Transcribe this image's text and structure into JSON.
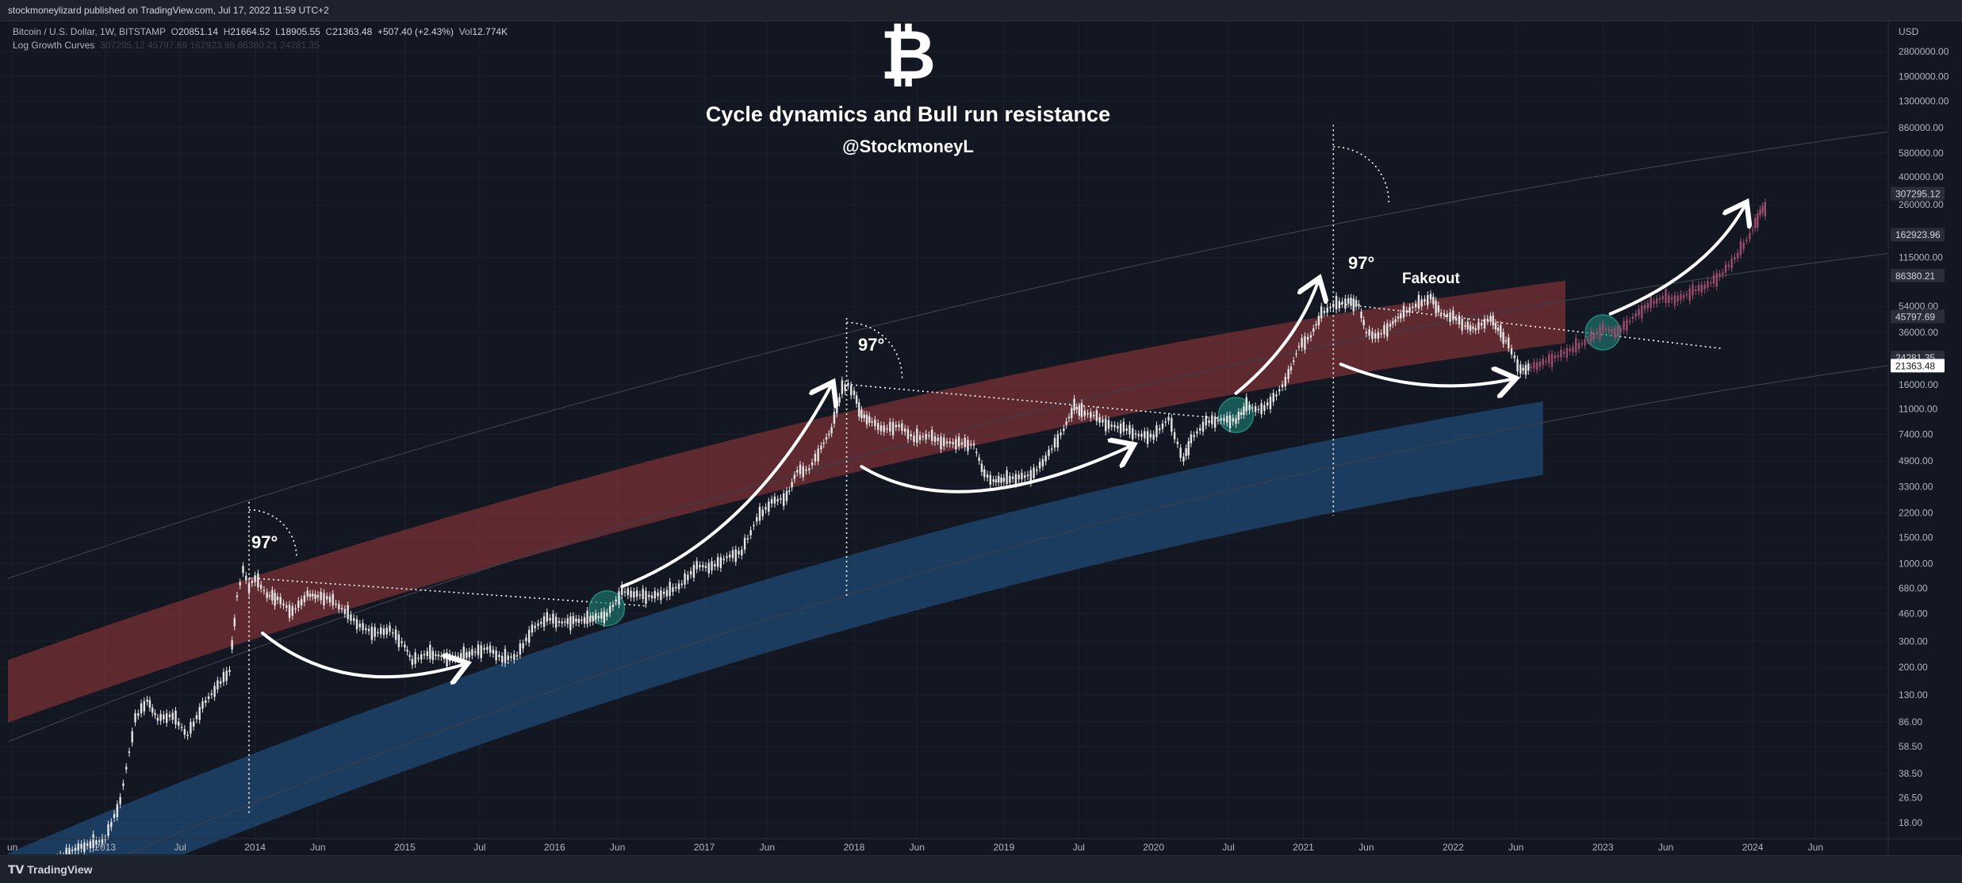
{
  "header": {
    "published": "stockmoneylizard published on TradingView.com, Jul 17, 2022 11:59 UTC+2"
  },
  "legend": {
    "symbol": "Bitcoin / U.S. Dollar, 1W, BITSTAMP",
    "o_label": "O",
    "o": "20851.14",
    "h_label": "H",
    "h": "21664.52",
    "l_label": "L",
    "l": "18905.55",
    "c_label": "C",
    "c": "21363.48",
    "change": "+507.40 (+2.43%)",
    "vol_label": "Vol",
    "vol": "12.774K",
    "indicator": "Log Growth Curves",
    "indicator_values": "307295.12  45797.69  162923.96  86380.21  24281.35"
  },
  "overlay": {
    "logo_glyph": "₿",
    "title": "Cycle dynamics and Bull run resistance",
    "handle": "@StockmoneyL",
    "angle_label": "97°",
    "fakeout_label": "Fakeout"
  },
  "footer": {
    "brand": "TradingView"
  },
  "chart_data": {
    "type": "line",
    "symbol": "BTCUSD",
    "scale": "log",
    "currency": "USD",
    "ylim": [
      14,
      3500000
    ],
    "y_ticks": [
      "2800000.00",
      "1900000.00",
      "1300000.00",
      "860000.00",
      "580000.00",
      "400000.00",
      "260000.00",
      "115000.00",
      "54000.00",
      "36000.00",
      "16000.00",
      "11000.00",
      "7400.00",
      "4900.00",
      "3300.00",
      "2200.00",
      "1500.00",
      "1000.00",
      "680.00",
      "460.00",
      "300.00",
      "200.00",
      "130.00",
      "86.00",
      "58.50",
      "38.50",
      "26.50",
      "18.00"
    ],
    "y_tick_values": [
      2800000,
      1900000,
      1300000,
      860000,
      580000,
      400000,
      260000,
      115000,
      54000,
      36000,
      16000,
      11000,
      7400,
      4900,
      3300,
      2200,
      1500,
      1000,
      680,
      460,
      300,
      200,
      130,
      86,
      58.5,
      38.5,
      26.5,
      18
    ],
    "price_badges": [
      {
        "label": "307295.12",
        "value": 307295.12,
        "bg": "#2a2e39",
        "fg": "#d1d4dc"
      },
      {
        "label": "162923.96",
        "value": 162923.96,
        "bg": "#2a2e39",
        "fg": "#d1d4dc"
      },
      {
        "label": "86380.21",
        "value": 86380.21,
        "bg": "#2a2e39",
        "fg": "#d1d4dc"
      },
      {
        "label": "45797.69",
        "value": 45797.69,
        "bg": "#2a2e39",
        "fg": "#d1d4dc"
      },
      {
        "label": "24281.35",
        "value": 24281.35,
        "bg": "#2a2e39",
        "fg": "#d1d4dc"
      },
      {
        "label": "21363.48",
        "value": 21363.48,
        "bg": "#ffffff",
        "fg": "#131722"
      }
    ],
    "x_ticks": [
      {
        "label": "un",
        "t": 2012.38
      },
      {
        "label": "2013",
        "t": 2013.0
      },
      {
        "label": "Jul",
        "t": 2013.5
      },
      {
        "label": "2014",
        "t": 2014.0
      },
      {
        "label": "Jun",
        "t": 2014.42
      },
      {
        "label": "2015",
        "t": 2015.0
      },
      {
        "label": "Jul",
        "t": 2015.5
      },
      {
        "label": "2016",
        "t": 2016.0
      },
      {
        "label": "Jun",
        "t": 2016.42
      },
      {
        "label": "2017",
        "t": 2017.0
      },
      {
        "label": "Jun",
        "t": 2017.42
      },
      {
        "label": "2018",
        "t": 2018.0
      },
      {
        "label": "Jun",
        "t": 2018.42
      },
      {
        "label": "2019",
        "t": 2019.0
      },
      {
        "label": "Jul",
        "t": 2019.5
      },
      {
        "label": "2020",
        "t": 2020.0
      },
      {
        "label": "Jul",
        "t": 2020.5
      },
      {
        "label": "2021",
        "t": 2021.0
      },
      {
        "label": "Jun",
        "t": 2021.42
      },
      {
        "label": "2022",
        "t": 2022.0
      },
      {
        "label": "Jun",
        "t": 2022.42
      },
      {
        "label": "2023",
        "t": 2023.0
      },
      {
        "label": "Jun",
        "t": 2023.42
      },
      {
        "label": "2024",
        "t": 2024.0
      },
      {
        "label": "Jun",
        "t": 2024.42
      }
    ],
    "series": [
      {
        "style": "candles",
        "color": "#e6e6e6",
        "points": [
          [
            2012.6,
            9
          ],
          [
            2012.8,
            12
          ],
          [
            2013.0,
            14
          ],
          [
            2013.1,
            25
          ],
          [
            2013.2,
            90
          ],
          [
            2013.28,
            120
          ],
          [
            2013.35,
            90
          ],
          [
            2013.45,
            95
          ],
          [
            2013.55,
            70
          ],
          [
            2013.65,
            110
          ],
          [
            2013.75,
            150
          ],
          [
            2013.83,
            190
          ],
          [
            2013.88,
            600
          ],
          [
            2013.92,
            900
          ],
          [
            2013.96,
            700
          ],
          [
            2014.0,
            800
          ],
          [
            2014.08,
            620
          ],
          [
            2014.15,
            580
          ],
          [
            2014.25,
            470
          ],
          [
            2014.35,
            620
          ],
          [
            2014.42,
            600
          ],
          [
            2014.5,
            580
          ],
          [
            2014.6,
            480
          ],
          [
            2014.7,
            380
          ],
          [
            2014.8,
            340
          ],
          [
            2014.9,
            360
          ],
          [
            2015.0,
            280
          ],
          [
            2015.05,
            220
          ],
          [
            2015.15,
            250
          ],
          [
            2015.3,
            230
          ],
          [
            2015.45,
            250
          ],
          [
            2015.55,
            270
          ],
          [
            2015.65,
            230
          ],
          [
            2015.75,
            240
          ],
          [
            2015.85,
            360
          ],
          [
            2015.95,
            430
          ],
          [
            2016.05,
            400
          ],
          [
            2016.2,
            420
          ],
          [
            2016.35,
            450
          ],
          [
            2016.45,
            650
          ],
          [
            2016.55,
            620
          ],
          [
            2016.65,
            600
          ],
          [
            2016.75,
            640
          ],
          [
            2016.85,
            730
          ],
          [
            2016.95,
            960
          ],
          [
            2017.05,
            950
          ],
          [
            2017.15,
            1100
          ],
          [
            2017.25,
            1200
          ],
          [
            2017.35,
            2000
          ],
          [
            2017.45,
            2600
          ],
          [
            2017.55,
            2800
          ],
          [
            2017.62,
            4200
          ],
          [
            2017.7,
            4300
          ],
          [
            2017.78,
            6000
          ],
          [
            2017.85,
            8000
          ],
          [
            2017.92,
            15000
          ],
          [
            2017.96,
            16000
          ],
          [
            2018.0,
            14000
          ],
          [
            2018.05,
            10000
          ],
          [
            2018.12,
            9000
          ],
          [
            2018.2,
            8000
          ],
          [
            2018.3,
            8500
          ],
          [
            2018.4,
            7000
          ],
          [
            2018.5,
            7300
          ],
          [
            2018.6,
            6500
          ],
          [
            2018.7,
            6500
          ],
          [
            2018.8,
            6300
          ],
          [
            2018.87,
            4000
          ],
          [
            2018.93,
            3600
          ],
          [
            2019.0,
            3700
          ],
          [
            2019.1,
            3800
          ],
          [
            2019.2,
            4000
          ],
          [
            2019.3,
            5500
          ],
          [
            2019.4,
            8000
          ],
          [
            2019.47,
            11500
          ],
          [
            2019.52,
            10500
          ],
          [
            2019.6,
            10000
          ],
          [
            2019.7,
            8500
          ],
          [
            2019.8,
            8200
          ],
          [
            2019.9,
            7300
          ],
          [
            2020.0,
            7200
          ],
          [
            2020.1,
            9500
          ],
          [
            2020.2,
            5000
          ],
          [
            2020.25,
            6800
          ],
          [
            2020.35,
            9000
          ],
          [
            2020.45,
            9300
          ],
          [
            2020.55,
            9200
          ],
          [
            2020.62,
            11500
          ],
          [
            2020.72,
            10800
          ],
          [
            2020.82,
            13500
          ],
          [
            2020.9,
            18500
          ],
          [
            2020.97,
            29000
          ],
          [
            2021.05,
            34000
          ],
          [
            2021.12,
            48000
          ],
          [
            2021.2,
            55000
          ],
          [
            2021.3,
            58000
          ],
          [
            2021.37,
            55000
          ],
          [
            2021.42,
            36000
          ],
          [
            2021.5,
            34000
          ],
          [
            2021.58,
            40000
          ],
          [
            2021.65,
            47000
          ],
          [
            2021.75,
            55000
          ],
          [
            2021.85,
            62000
          ],
          [
            2021.92,
            48000
          ],
          [
            2022.0,
            46000
          ],
          [
            2022.08,
            40000
          ],
          [
            2022.15,
            38000
          ],
          [
            2022.25,
            45000
          ],
          [
            2022.3,
            38000
          ],
          [
            2022.37,
            30000
          ],
          [
            2022.45,
            20000
          ],
          [
            2022.52,
            21000
          ]
        ]
      },
      {
        "style": "projection",
        "color": "#9c4d6e",
        "points": [
          [
            2022.52,
            21000
          ],
          [
            2022.6,
            22500
          ],
          [
            2022.7,
            25000
          ],
          [
            2022.8,
            28000
          ],
          [
            2022.9,
            32000
          ],
          [
            2023.0,
            38000
          ],
          [
            2023.1,
            36000
          ],
          [
            2023.2,
            45000
          ],
          [
            2023.3,
            55000
          ],
          [
            2023.4,
            62000
          ],
          [
            2023.5,
            60000
          ],
          [
            2023.6,
            68000
          ],
          [
            2023.7,
            75000
          ],
          [
            2023.8,
            90000
          ],
          [
            2023.9,
            120000
          ],
          [
            2024.0,
            175000
          ],
          [
            2024.05,
            230000
          ],
          [
            2024.1,
            260000
          ]
        ]
      }
    ],
    "bands": [
      {
        "name": "red",
        "color": "#7a3036"
      },
      {
        "name": "blue",
        "color": "#1f4a73"
      }
    ]
  }
}
